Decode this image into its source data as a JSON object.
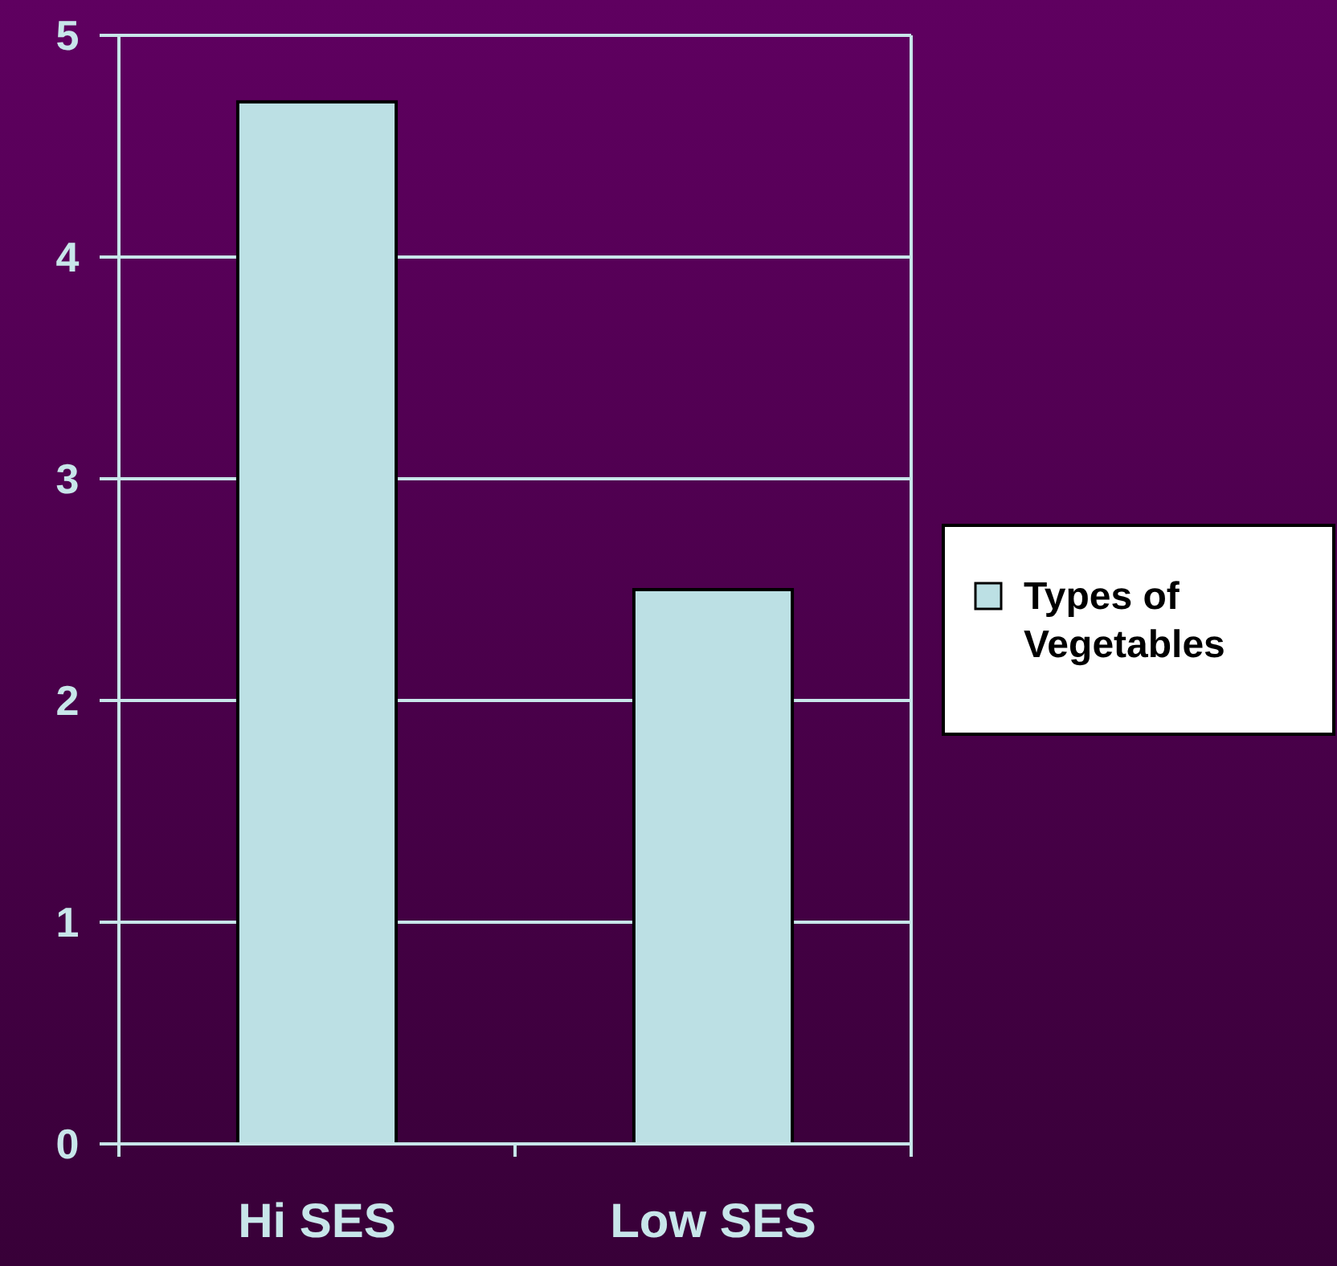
{
  "chart_data": {
    "type": "bar",
    "categories": [
      "Hi SES",
      "Low SES"
    ],
    "series": [
      {
        "name": "Types of Vegetables",
        "color": "#bce0e4",
        "values": [
          4.7,
          2.5
        ]
      }
    ],
    "ylim": [
      0,
      5
    ],
    "yticks": [
      0,
      1,
      2,
      3,
      4,
      5
    ],
    "grid": "y",
    "legend": "right"
  }
}
